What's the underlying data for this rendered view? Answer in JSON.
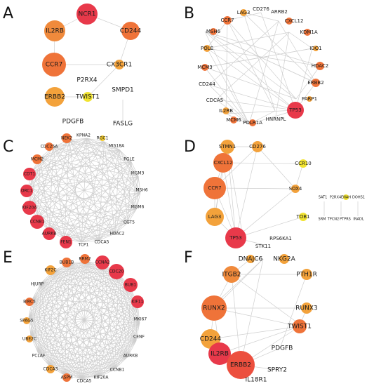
{
  "panels": {
    "a": {
      "letter": "A",
      "nodes": [
        "NCR1",
        "IL2RB",
        "CD244",
        "CCR7",
        "CX3CR1",
        "P2RX4",
        "ERBB2",
        "TWIST1",
        "SMPD1",
        "PDGFB",
        "FASLG"
      ]
    },
    "b": {
      "letter": "B",
      "nodes": [
        "CCR7",
        "LAG3",
        "CD276",
        "ARRB2",
        "CXCL12",
        "KDM1A",
        "IDO1",
        "HDAC2",
        "ERBB2",
        "PARP1",
        "TP53",
        "HNRNPL",
        "POLR1A",
        "MCM6",
        "IL2RB",
        "CDCA5",
        "CD244",
        "MCM3",
        "POLE",
        "MSH6"
      ]
    },
    "c": {
      "letter": "C",
      "nodes": [
        "NEK2",
        "KPNA2",
        "RGC1",
        "MIS18A",
        "PGLE",
        "MGM3",
        "MSH6",
        "MGM6",
        "CGT5",
        "HDAC2",
        "CDCA5",
        "TCP1",
        "FEN1",
        "AURKB",
        "CCNB1",
        "KIF20A",
        "ORC1",
        "CDT1",
        "MCM2",
        "CDC25A"
      ]
    },
    "d": {
      "letter": "D",
      "nodes": [
        "STMN1",
        "CD276",
        "CXCL12",
        "CCR10",
        "CCR7",
        "SOX4",
        "LAG3",
        "TOB1",
        "TP53",
        "RPS6KA1",
        "STK11",
        "SAT1",
        "P2RX4",
        "ENAH",
        "DOHS1",
        "SRM",
        "TPCN2",
        "PTPRS",
        "INADL"
      ]
    },
    "e": {
      "letter": "E",
      "nodes": [
        "KIF2C",
        "BUB1B",
        "RRM2",
        "CCNA2",
        "CDC20",
        "BUB1",
        "KIF11",
        "MKI67",
        "CENF",
        "AURKB",
        "CCNB1",
        "KIF20A",
        "CDCA5",
        "ASPM",
        "CDCA3",
        "PCLAF",
        "UBE2C",
        "SPAG5",
        "BIRC5",
        "HJURP"
      ]
    },
    "f": {
      "letter": "F",
      "nodes": [
        "DNAJC6",
        "NKG2A",
        "ITGB2",
        "PTH1R",
        "RUNX2",
        "RUNX3",
        "TWIST1",
        "CD244",
        "PDGFB",
        "IL2RB",
        "ERBB2",
        "SPRY2",
        "IL18R1"
      ]
    }
  },
  "colors": {
    "red": "#e8394a",
    "orange": "#ef7339",
    "amber": "#f3a23b",
    "yellow": "#f5cd2d",
    "edge": "#cfcfcf"
  }
}
